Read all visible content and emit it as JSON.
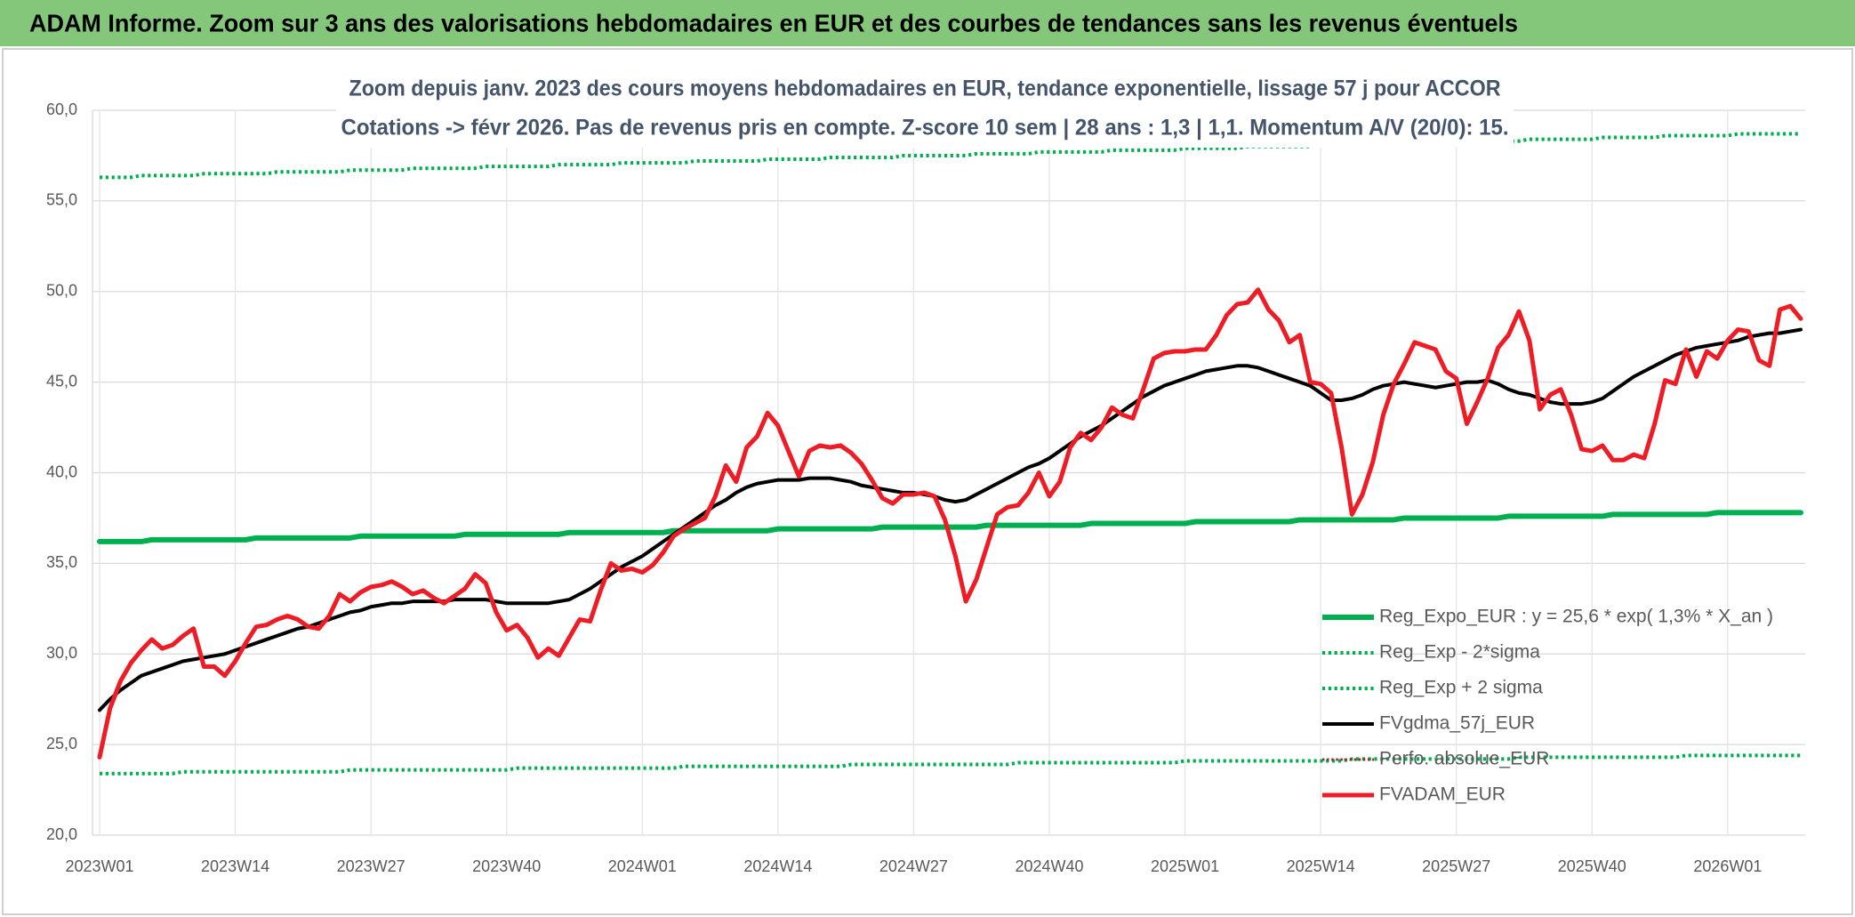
{
  "chart_data": {
    "type": "line",
    "title": "ADAM Informe. Zoom sur 3 ans des valorisations hebdomadaires en EUR et des courbes de tendances sans les revenus éventuels",
    "subtitle": [
      "Zoom depuis janv. 2023 des cours moyens hebdomadaires en EUR, tendance exponentielle, lissage 57 j pour ACCOR",
      "Cotations -> févr 2026. Pas de revenus pris en compte. Z-score 10 sem | 28 ans : 1,3 | 1,1. Momentum A/V (20/0): 15."
    ],
    "categories": [
      "2023W01",
      null,
      null,
      null,
      null,
      null,
      null,
      null,
      null,
      null,
      null,
      null,
      null,
      "2023W14",
      null,
      null,
      null,
      null,
      null,
      null,
      null,
      null,
      null,
      null,
      null,
      null,
      "2023W27",
      null,
      null,
      null,
      null,
      null,
      null,
      null,
      null,
      null,
      null,
      null,
      null,
      "2023W40",
      null,
      null,
      null,
      null,
      null,
      null,
      null,
      null,
      null,
      null,
      null,
      null,
      "2024W01",
      null,
      null,
      null,
      null,
      null,
      null,
      null,
      null,
      null,
      null,
      null,
      null,
      "2024W14",
      null,
      null,
      null,
      null,
      null,
      null,
      null,
      null,
      null,
      null,
      null,
      null,
      "2024W27",
      null,
      null,
      null,
      null,
      null,
      null,
      null,
      null,
      null,
      null,
      null,
      null,
      "2024W40",
      null,
      null,
      null,
      null,
      null,
      null,
      null,
      null,
      null,
      null,
      null,
      null,
      "2025W01",
      null,
      null,
      null,
      null,
      null,
      null,
      null,
      null,
      null,
      null,
      null,
      null,
      "2025W14",
      null,
      null,
      null,
      null,
      null,
      null,
      null,
      null,
      null,
      null,
      null,
      null,
      "2025W27",
      null,
      null,
      null,
      null,
      null,
      null,
      null,
      null,
      null,
      null,
      null,
      null,
      "2025W40",
      null,
      null,
      null,
      null,
      null,
      null,
      null,
      null,
      null,
      null,
      null,
      null,
      "2026W01",
      null,
      null,
      null,
      null,
      null,
      null,
      null
    ],
    "ylim": [
      20,
      60
    ],
    "yticks": [
      {
        "value": 20,
        "label": "20,0"
      },
      {
        "value": 25,
        "label": "25,0"
      },
      {
        "value": 30,
        "label": "30,0"
      },
      {
        "value": 35,
        "label": "35,0"
      },
      {
        "value": 40,
        "label": "40,0"
      },
      {
        "value": 45,
        "label": "45,0"
      },
      {
        "value": 50,
        "label": "50,0"
      },
      {
        "value": 55,
        "label": "55,0"
      },
      {
        "value": 60,
        "label": "60,0"
      }
    ],
    "grid": true,
    "legend": "lower right",
    "series": [
      {
        "name": "Reg_Expo_EUR : y = 25,6 * exp( 1,3% * X_an )",
        "color": "#00b050",
        "dash": "solid",
        "width": 6,
        "values": [
          36.2,
          36.2,
          36.2,
          36.2,
          36.2,
          36.3,
          36.3,
          36.3,
          36.3,
          36.3,
          36.3,
          36.3,
          36.3,
          36.3,
          36.3,
          36.4,
          36.4,
          36.4,
          36.4,
          36.4,
          36.4,
          36.4,
          36.4,
          36.4,
          36.4,
          36.5,
          36.5,
          36.5,
          36.5,
          36.5,
          36.5,
          36.5,
          36.5,
          36.5,
          36.5,
          36.6,
          36.6,
          36.6,
          36.6,
          36.6,
          36.6,
          36.6,
          36.6,
          36.6,
          36.6,
          36.7,
          36.7,
          36.7,
          36.7,
          36.7,
          36.7,
          36.7,
          36.7,
          36.7,
          36.7,
          36.8,
          36.8,
          36.8,
          36.8,
          36.8,
          36.8,
          36.8,
          36.8,
          36.8,
          36.8,
          36.9,
          36.9,
          36.9,
          36.9,
          36.9,
          36.9,
          36.9,
          36.9,
          36.9,
          36.9,
          37.0,
          37.0,
          37.0,
          37.0,
          37.0,
          37.0,
          37.0,
          37.0,
          37.0,
          37.0,
          37.1,
          37.1,
          37.1,
          37.1,
          37.1,
          37.1,
          37.1,
          37.1,
          37.1,
          37.1,
          37.2,
          37.2,
          37.2,
          37.2,
          37.2,
          37.2,
          37.2,
          37.2,
          37.2,
          37.2,
          37.3,
          37.3,
          37.3,
          37.3,
          37.3,
          37.3,
          37.3,
          37.3,
          37.3,
          37.3,
          37.4,
          37.4,
          37.4,
          37.4,
          37.4,
          37.4,
          37.4,
          37.4,
          37.4,
          37.4,
          37.5,
          37.5,
          37.5,
          37.5,
          37.5,
          37.5,
          37.5,
          37.5,
          37.5,
          37.5,
          37.6,
          37.6,
          37.6,
          37.6,
          37.6,
          37.6,
          37.6,
          37.6,
          37.6,
          37.6,
          37.7,
          37.7,
          37.7,
          37.7,
          37.7,
          37.7,
          37.7,
          37.7,
          37.7,
          37.7,
          37.8,
          37.8,
          37.8,
          37.8,
          37.8,
          37.8,
          37.8,
          37.8,
          37.8
        ]
      },
      {
        "name": "Reg_Exp - 2*sigma",
        "color": "#00b050",
        "dash": "dotted",
        "width": 4,
        "values": [
          23.4,
          23.4,
          23.4,
          23.4,
          23.4,
          23.4,
          23.4,
          23.4,
          23.5,
          23.5,
          23.5,
          23.5,
          23.5,
          23.5,
          23.5,
          23.5,
          23.5,
          23.5,
          23.5,
          23.5,
          23.5,
          23.5,
          23.5,
          23.5,
          23.6,
          23.6,
          23.6,
          23.6,
          23.6,
          23.6,
          23.6,
          23.6,
          23.6,
          23.6,
          23.6,
          23.6,
          23.6,
          23.6,
          23.6,
          23.6,
          23.7,
          23.7,
          23.7,
          23.7,
          23.7,
          23.7,
          23.7,
          23.7,
          23.7,
          23.7,
          23.7,
          23.7,
          23.7,
          23.7,
          23.7,
          23.7,
          23.8,
          23.8,
          23.8,
          23.8,
          23.8,
          23.8,
          23.8,
          23.8,
          23.8,
          23.8,
          23.8,
          23.8,
          23.8,
          23.8,
          23.8,
          23.8,
          23.9,
          23.9,
          23.9,
          23.9,
          23.9,
          23.9,
          23.9,
          23.9,
          23.9,
          23.9,
          23.9,
          23.9,
          23.9,
          23.9,
          23.9,
          23.9,
          24.0,
          24.0,
          24.0,
          24.0,
          24.0,
          24.0,
          24.0,
          24.0,
          24.0,
          24.0,
          24.0,
          24.0,
          24.0,
          24.0,
          24.0,
          24.0,
          24.1,
          24.1,
          24.1,
          24.1,
          24.1,
          24.1,
          24.1,
          24.1,
          24.1,
          24.1,
          24.1,
          24.1,
          24.1,
          24.1,
          24.1,
          24.1,
          24.2,
          24.2,
          24.2,
          24.2,
          24.2,
          24.2,
          24.2,
          24.2,
          24.2,
          24.2,
          24.2,
          24.2,
          24.2,
          24.2,
          24.2,
          24.2,
          24.3,
          24.3,
          24.3,
          24.3,
          24.3,
          24.3,
          24.3,
          24.3,
          24.3,
          24.3,
          24.3,
          24.3,
          24.3,
          24.3,
          24.3,
          24.3,
          24.4,
          24.4,
          24.4,
          24.4,
          24.4,
          24.4,
          24.4,
          24.4,
          24.4,
          24.4,
          24.4,
          24.4
        ]
      },
      {
        "name": "Reg_Exp + 2 sigma",
        "color": "#00b050",
        "dash": "dotted",
        "width": 4,
        "values": [
          56.3,
          56.3,
          56.3,
          56.3,
          56.4,
          56.4,
          56.4,
          56.4,
          56.4,
          56.4,
          56.5,
          56.5,
          56.5,
          56.5,
          56.5,
          56.5,
          56.5,
          56.6,
          56.6,
          56.6,
          56.6,
          56.6,
          56.6,
          56.6,
          56.7,
          56.7,
          56.7,
          56.7,
          56.7,
          56.7,
          56.8,
          56.8,
          56.8,
          56.8,
          56.8,
          56.8,
          56.8,
          56.9,
          56.9,
          56.9,
          56.9,
          56.9,
          56.9,
          56.9,
          57.0,
          57.0,
          57.0,
          57.0,
          57.0,
          57.0,
          57.1,
          57.1,
          57.1,
          57.1,
          57.1,
          57.1,
          57.1,
          57.2,
          57.2,
          57.2,
          57.2,
          57.2,
          57.2,
          57.2,
          57.3,
          57.3,
          57.3,
          57.3,
          57.3,
          57.3,
          57.4,
          57.4,
          57.4,
          57.4,
          57.4,
          57.4,
          57.4,
          57.5,
          57.5,
          57.5,
          57.5,
          57.5,
          57.5,
          57.5,
          57.6,
          57.6,
          57.6,
          57.6,
          57.6,
          57.6,
          57.7,
          57.7,
          57.7,
          57.7,
          57.7,
          57.7,
          57.7,
          57.8,
          57.8,
          57.8,
          57.8,
          57.8,
          57.8,
          57.8,
          57.9,
          57.9,
          57.9,
          57.9,
          57.9,
          57.9,
          58.0,
          58.0,
          58.0,
          58.0,
          58.0,
          58.0,
          58.0,
          58.1,
          58.1,
          58.1,
          58.1,
          58.1,
          58.1,
          58.1,
          58.2,
          58.2,
          58.2,
          58.2,
          58.2,
          58.2,
          58.3,
          58.3,
          58.3,
          58.3,
          58.3,
          58.3,
          58.3,
          58.4,
          58.4,
          58.4,
          58.4,
          58.4,
          58.4,
          58.4,
          58.5,
          58.5,
          58.5,
          58.5,
          58.5,
          58.5,
          58.6,
          58.6,
          58.6,
          58.6,
          58.6,
          58.6,
          58.6,
          58.7,
          58.7,
          58.7,
          58.7,
          58.7,
          58.7,
          58.7
        ]
      },
      {
        "name": "FVgdma_57j_EUR",
        "color": "#000000",
        "dash": "solid",
        "width": 4,
        "values": [
          26.9,
          27.5,
          28.0,
          28.4,
          28.8,
          29.0,
          29.2,
          29.4,
          29.6,
          29.7,
          29.8,
          29.9,
          30.0,
          30.2,
          30.4,
          30.6,
          30.8,
          31.0,
          31.2,
          31.4,
          31.5,
          31.7,
          31.9,
          32.1,
          32.3,
          32.4,
          32.6,
          32.7,
          32.8,
          32.8,
          32.9,
          32.9,
          32.9,
          32.9,
          33.0,
          33.0,
          33.0,
          33.0,
          32.9,
          32.8,
          32.8,
          32.8,
          32.8,
          32.8,
          32.9,
          33.0,
          33.3,
          33.6,
          34.0,
          34.4,
          34.8,
          35.1,
          35.4,
          35.8,
          36.2,
          36.6,
          37.0,
          37.4,
          37.8,
          38.2,
          38.5,
          38.9,
          39.2,
          39.4,
          39.5,
          39.6,
          39.6,
          39.6,
          39.7,
          39.7,
          39.7,
          39.6,
          39.5,
          39.3,
          39.2,
          39.1,
          39.0,
          38.9,
          38.9,
          38.8,
          38.7,
          38.5,
          38.4,
          38.5,
          38.8,
          39.1,
          39.4,
          39.7,
          40.0,
          40.3,
          40.5,
          40.8,
          41.2,
          41.6,
          42.0,
          42.3,
          42.6,
          43.0,
          43.4,
          43.8,
          44.2,
          44.5,
          44.8,
          45.0,
          45.2,
          45.4,
          45.6,
          45.7,
          45.8,
          45.9,
          45.9,
          45.8,
          45.6,
          45.4,
          45.2,
          45.0,
          44.8,
          44.4,
          44.0,
          44.0,
          44.1,
          44.3,
          44.6,
          44.8,
          44.9,
          45.0,
          44.9,
          44.8,
          44.7,
          44.8,
          44.9,
          45.0,
          45.0,
          45.1,
          44.9,
          44.6,
          44.4,
          44.3,
          44.1,
          43.9,
          43.8,
          43.8,
          43.8,
          43.9,
          44.1,
          44.5,
          44.9,
          45.3,
          45.6,
          45.9,
          46.2,
          46.5,
          46.7,
          46.9,
          47.0,
          47.1,
          47.2,
          47.3,
          47.5,
          47.6,
          47.7,
          47.7,
          47.8,
          47.9
        ]
      },
      {
        "name": "Perfo. absolue_EUR",
        "color": "#a0282d",
        "dash": "dotted",
        "width": 3,
        "values": [
          null,
          null,
          null,
          null,
          null,
          null,
          null,
          null,
          null,
          null,
          null,
          null,
          null,
          null,
          null,
          null,
          null,
          null,
          null,
          null,
          null,
          null,
          null,
          null,
          null,
          null,
          null,
          null,
          null,
          null,
          null,
          null,
          null,
          null,
          null,
          null,
          null,
          null,
          null,
          null,
          null,
          null,
          null,
          null,
          null,
          null,
          null,
          null,
          null,
          null,
          null,
          null,
          null,
          null,
          null,
          null,
          null,
          null,
          null,
          null,
          null,
          null,
          null,
          null,
          null,
          null,
          null,
          null,
          null,
          null,
          null,
          null,
          null,
          null,
          null,
          null,
          null,
          null,
          null,
          null,
          null,
          null,
          null,
          null,
          null,
          null,
          null,
          null,
          null,
          null,
          null,
          null,
          null,
          null,
          null,
          null,
          null,
          null,
          null,
          null,
          null,
          null,
          null,
          null,
          null,
          null,
          null,
          null,
          null,
          null,
          null,
          null,
          null,
          null,
          null,
          null,
          null,
          null,
          null,
          null,
          null,
          null,
          null,
          null,
          null,
          null,
          null,
          null,
          null,
          null,
          null,
          null,
          null,
          null,
          null,
          null,
          null,
          null,
          null,
          null,
          null,
          null,
          null,
          null,
          null,
          null,
          null,
          null,
          null,
          null,
          null,
          null,
          null,
          null,
          null,
          null,
          null,
          null,
          null,
          null,
          null,
          null,
          null,
          null
        ]
      },
      {
        "name": "FVADAM_EUR",
        "color": "#ee1c25",
        "dash": "solid",
        "width": 5,
        "values": [
          24.3,
          27.0,
          28.5,
          29.5,
          30.2,
          30.8,
          30.3,
          30.5,
          31.0,
          31.4,
          29.3,
          29.3,
          28.8,
          29.6,
          30.6,
          31.5,
          31.6,
          31.9,
          32.1,
          31.9,
          31.5,
          31.4,
          32.1,
          33.3,
          32.9,
          33.4,
          33.7,
          33.8,
          34.0,
          33.7,
          33.3,
          33.5,
          33.1,
          32.8,
          33.2,
          33.6,
          34.4,
          33.9,
          32.3,
          31.3,
          31.6,
          30.9,
          29.8,
          30.3,
          29.9,
          30.9,
          31.9,
          31.8,
          33.5,
          35.0,
          34.6,
          34.7,
          34.5,
          34.9,
          35.6,
          36.5,
          36.9,
          37.2,
          37.5,
          38.7,
          40.4,
          39.5,
          41.4,
          42.0,
          43.3,
          42.6,
          41.2,
          39.8,
          41.2,
          41.5,
          41.4,
          41.5,
          41.1,
          40.5,
          39.6,
          38.6,
          38.3,
          38.8,
          38.8,
          38.9,
          38.7,
          37.4,
          35.4,
          32.9,
          34.1,
          35.9,
          37.7,
          38.1,
          38.2,
          38.9,
          40.0,
          38.7,
          39.5,
          41.4,
          42.2,
          41.8,
          42.5,
          43.6,
          43.2,
          43.0,
          44.6,
          46.3,
          46.6,
          46.7,
          46.7,
          46.8,
          46.8,
          47.6,
          48.7,
          49.3,
          49.4,
          50.1,
          49.0,
          48.4,
          47.2,
          47.6,
          45.0,
          44.9,
          44.4,
          41.4,
          37.7,
          38.8,
          40.6,
          43.2,
          44.9,
          46.0,
          47.2,
          47.0,
          46.8,
          45.6,
          45.2,
          42.7,
          43.9,
          45.2,
          46.9,
          47.6,
          48.9,
          47.3,
          43.5,
          44.3,
          44.6,
          43.2,
          41.3,
          41.2,
          41.5,
          40.7,
          40.7,
          41.0,
          40.8,
          42.7,
          45.1,
          44.9,
          46.8,
          45.3,
          46.7,
          46.3,
          47.3,
          47.9,
          47.8,
          46.2,
          45.9,
          49.0,
          49.2,
          48.5
        ]
      }
    ]
  }
}
